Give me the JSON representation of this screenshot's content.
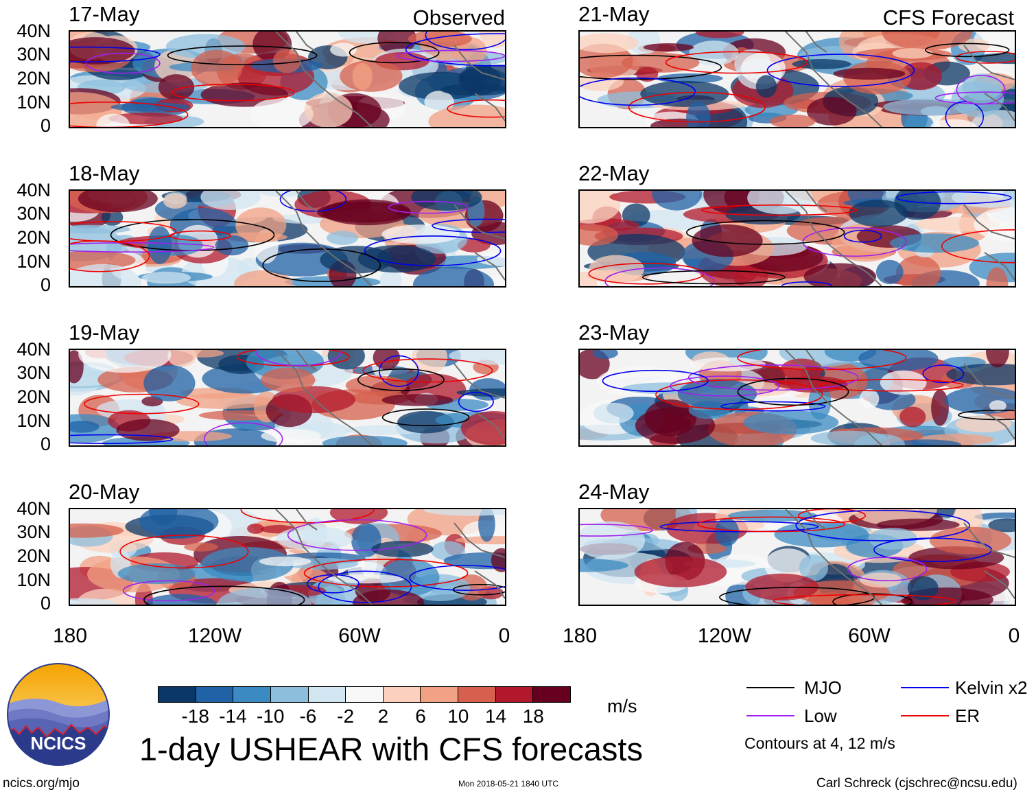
{
  "headers": {
    "observed": "Observed",
    "forecast": "CFS Forecast"
  },
  "panels": {
    "observed": [
      "17-May",
      "18-May",
      "19-May",
      "20-May"
    ],
    "forecast": [
      "21-May",
      "22-May",
      "23-May",
      "24-May"
    ]
  },
  "latitude_labels": [
    "40N",
    "30N",
    "20N",
    "10N",
    "0"
  ],
  "longitude_labels": [
    "180",
    "120W",
    "60W",
    "0"
  ],
  "colorbar": {
    "unit": "m/s",
    "ticks": [
      "-18",
      "-14",
      "-10",
      "-6",
      "-2",
      "2",
      "6",
      "10",
      "14",
      "18"
    ],
    "colors": [
      "#0b3766",
      "#1f62a6",
      "#3b8bc2",
      "#8dbfdd",
      "#d2e6f1",
      "#f8f8f8",
      "#fbd1bd",
      "#f1a284",
      "#d6604d",
      "#b2182b",
      "#67001f"
    ]
  },
  "legend": {
    "items": [
      {
        "label": "MJO",
        "color": "#000000"
      },
      {
        "label": "Kelvin x2",
        "color": "#0000ee"
      },
      {
        "label": "Low",
        "color": "#a020f0"
      },
      {
        "label": "ER",
        "color": "#ee0000"
      }
    ],
    "note": "Contours at 4, 12 m/s"
  },
  "title": "1-day USHEAR with CFS forecasts",
  "logo": {
    "text": "NCICS"
  },
  "footer": {
    "url": "ncics.org/mjo",
    "timestamp": "Mon 2018-05-21 1840 UTC",
    "credit": "Carl Schreck (cjschrec@ncsu.edu)"
  }
}
